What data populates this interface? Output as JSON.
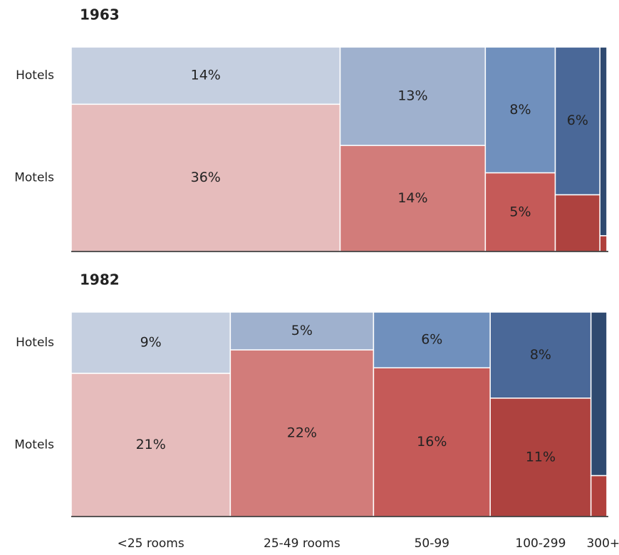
{
  "chart_data": [
    {
      "type": "mekko",
      "title": "1963",
      "series": [
        {
          "name": "Hotels",
          "colors": [
            "#c5cfe0",
            "#9fb1ce",
            "#7090bd",
            "#4a6898",
            "#2f4a70"
          ],
          "values": [
            14,
            13,
            8,
            6,
            1.2
          ],
          "value_labels": [
            "14%",
            "13%",
            "8%",
            "6%",
            null
          ]
        },
        {
          "name": "Motels",
          "colors": [
            "#e6bcbc",
            "#d27c7a",
            "#c55a58",
            "#ae423f",
            "#b0403c"
          ],
          "values": [
            36,
            14,
            5,
            2.3,
            0.1
          ],
          "value_labels": [
            "36%",
            "14%",
            "5%",
            null,
            null
          ]
        }
      ]
    },
    {
      "type": "mekko",
      "title": "1982",
      "categories": [
        "<25 rooms",
        "25-49 rooms",
        "50-99",
        "100-299",
        "300+"
      ],
      "series": [
        {
          "name": "Hotels",
          "colors": [
            "#c5cfe0",
            "#9fb1ce",
            "#7090bd",
            "#4a6898",
            "#2f4a70"
          ],
          "values": [
            9,
            5,
            6,
            8,
            2.4
          ],
          "value_labels": [
            "9%",
            "5%",
            "6%",
            "8%",
            null
          ]
        },
        {
          "name": "Motels",
          "colors": [
            "#e6bcbc",
            "#d27c7a",
            "#c55a58",
            "#ae423f",
            "#b0403c"
          ],
          "values": [
            21,
            22,
            16,
            11,
            0.6
          ],
          "value_labels": [
            "21%",
            "22%",
            "16%",
            "11%",
            null
          ]
        }
      ]
    }
  ]
}
